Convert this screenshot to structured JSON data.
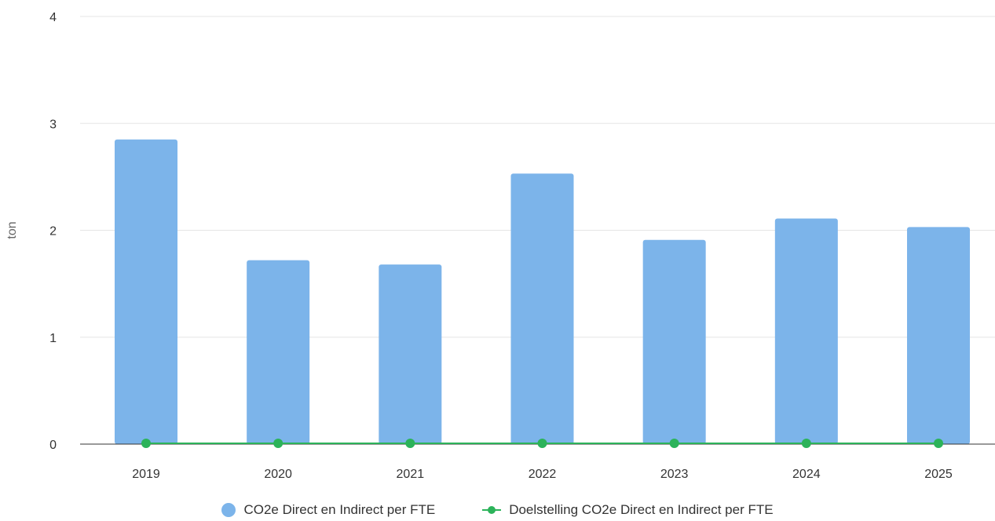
{
  "chart_data": {
    "type": "bar",
    "categories": [
      "2019",
      "2020",
      "2021",
      "2022",
      "2023",
      "2024",
      "2025"
    ],
    "series": [
      {
        "name": "CO2e Direct en Indirect per FTE",
        "kind": "bar",
        "color": "#7cb4ea",
        "values": [
          2.85,
          1.72,
          1.68,
          2.53,
          1.91,
          2.11,
          2.03
        ]
      },
      {
        "name": "Doelstelling CO2e Direct en Indirect per FTE",
        "kind": "line",
        "color": "#2cb35a",
        "values": [
          0,
          0,
          0,
          0,
          0,
          0,
          0
        ]
      }
    ],
    "ylabel": "ton",
    "xlabel": "",
    "ylim": [
      0,
      4
    ],
    "yticks": [
      "0",
      "1",
      "2",
      "3",
      "4"
    ],
    "grid": true,
    "legend_position": "bottom"
  }
}
